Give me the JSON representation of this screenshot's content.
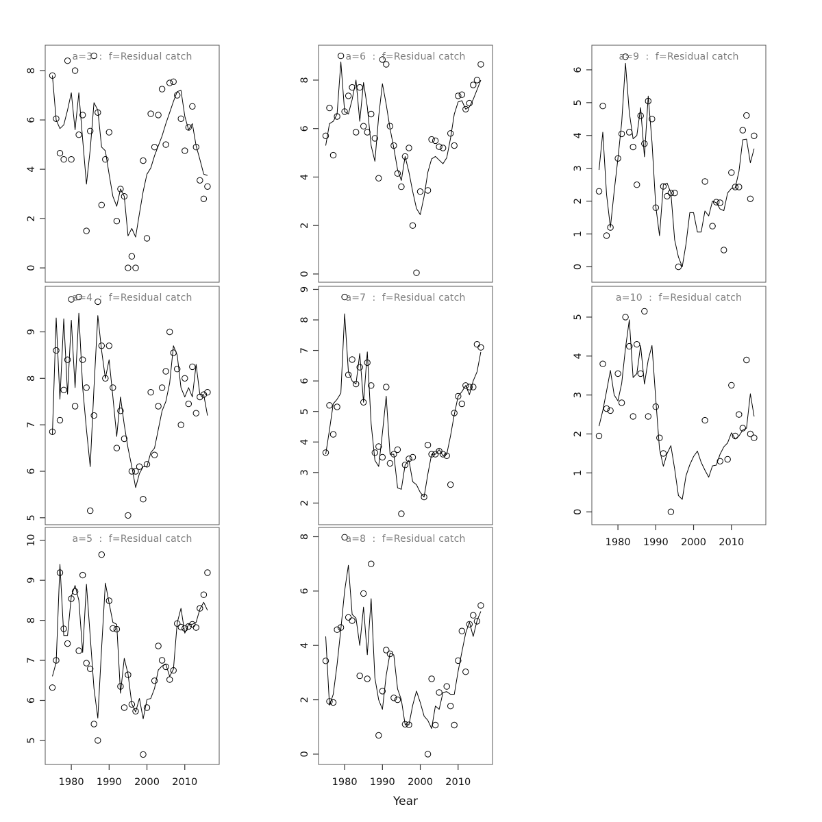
{
  "chart_data": {
    "type": "line",
    "title": "",
    "xlabel": "Year",
    "grid": "off",
    "layout": {
      "rows": 3,
      "cols": 3,
      "empty_cells": [
        "row3-col3"
      ]
    },
    "series_style": {
      "obs": "open black circles",
      "fit": "thin solid black line"
    },
    "x_ticks": [
      1980,
      1990,
      2000,
      2010
    ],
    "xlim": [
      1973.1,
      2019.1
    ],
    "years": [
      1975,
      1976,
      1977,
      1978,
      1979,
      1980,
      1981,
      1982,
      1983,
      1984,
      1985,
      1986,
      1987,
      1988,
      1989,
      1990,
      1991,
      1992,
      1993,
      1994,
      1995,
      1996,
      1997,
      1998,
      1999,
      2000,
      2001,
      2002,
      2003,
      2004,
      2005,
      2006,
      2007,
      2008,
      2009,
      2010,
      2011,
      2012,
      2013,
      2014,
      2015,
      2016
    ],
    "colors": {
      "title": "#7d7d7d",
      "line": "#000000",
      "point": "#000000",
      "box": "#555555",
      "tick": "#333333",
      "tick_label": "#111111"
    },
    "panels": [
      {
        "id": "a3",
        "title": "a=3  :  f=Residual catch",
        "row": 1,
        "col": 1,
        "ylim": [
          -0.58,
          9.03
        ],
        "y_ticks": [
          0,
          2,
          4,
          6,
          8
        ],
        "x_axis": false,
        "fit": [
          7.8,
          6.0,
          5.65,
          5.8,
          6.4,
          7.1,
          5.6,
          7.1,
          5.2,
          3.4,
          4.8,
          6.7,
          6.4,
          4.9,
          4.75,
          3.8,
          2.9,
          2.5,
          3.2,
          2.9,
          1.3,
          1.6,
          1.25,
          2.2,
          3.1,
          3.8,
          4.05,
          4.55,
          4.95,
          5.35,
          5.85,
          6.3,
          6.75,
          7.15,
          7.2,
          6.15,
          5.6,
          5.85,
          4.95,
          4.4,
          3.8,
          3.75
        ],
        "obs": [
          7.8,
          6.05,
          4.65,
          4.4,
          8.4,
          4.4,
          8.0,
          5.4,
          6.2,
          1.5,
          5.55,
          8.6,
          6.3,
          2.55,
          4.4,
          5.5,
          null,
          1.9,
          3.2,
          2.9,
          0.0,
          0.47,
          0.0,
          null,
          4.35,
          1.2,
          6.25,
          4.9,
          6.2,
          7.25,
          5.0,
          7.5,
          7.55,
          7.0,
          6.05,
          4.75,
          5.7,
          6.55,
          4.9,
          3.55,
          2.8,
          3.3
        ]
      },
      {
        "id": "a6",
        "title": "a=6  :  f=Residual catch",
        "row": 1,
        "col": 2,
        "ylim": [
          -0.34,
          9.44
        ],
        "y_ticks": [
          0,
          2,
          4,
          6,
          8
        ],
        "x_axis": false,
        "fit": [
          5.3,
          6.2,
          6.3,
          6.6,
          8.75,
          6.7,
          6.6,
          7.2,
          8.0,
          6.3,
          7.9,
          6.9,
          5.3,
          4.65,
          6.5,
          7.85,
          7.0,
          6.0,
          5.2,
          4.3,
          3.86,
          4.85,
          4.2,
          3.4,
          2.7,
          2.45,
          3.2,
          4.2,
          4.75,
          4.85,
          4.7,
          4.55,
          4.8,
          5.6,
          6.6,
          7.1,
          7.15,
          6.8,
          6.9,
          7.2,
          7.6,
          8.0
        ],
        "obs": [
          5.7,
          6.85,
          4.9,
          6.5,
          9.0,
          6.7,
          7.35,
          7.7,
          5.85,
          7.7,
          6.1,
          5.85,
          6.6,
          5.6,
          3.95,
          8.85,
          8.65,
          6.1,
          5.3,
          4.15,
          3.6,
          4.85,
          5.2,
          2.0,
          0.05,
          3.4,
          null,
          3.45,
          5.55,
          5.5,
          5.25,
          5.2,
          null,
          5.8,
          5.3,
          7.35,
          7.4,
          6.8,
          7.05,
          7.8,
          8.0,
          8.65
        ]
      },
      {
        "id": "a9",
        "title": "a=9  :  f=Residual catch",
        "row": 1,
        "col": 3,
        "ylim": [
          -0.47,
          6.75
        ],
        "y_ticks": [
          0,
          1,
          2,
          3,
          4,
          5,
          6
        ],
        "x_axis": false,
        "fit": [
          2.95,
          4.1,
          2.2,
          1.2,
          2.3,
          3.3,
          4.4,
          6.2,
          4.7,
          3.9,
          4.0,
          4.85,
          3.35,
          5.2,
          3.8,
          1.85,
          0.95,
          2.5,
          2.55,
          2.25,
          0.82,
          0.3,
          0.0,
          0.7,
          1.65,
          1.65,
          1.06,
          1.06,
          1.7,
          1.55,
          2.0,
          1.95,
          1.76,
          1.71,
          2.25,
          2.39,
          2.4,
          2.91,
          3.87,
          3.89,
          3.17,
          3.6
        ],
        "obs": [
          2.3,
          4.9,
          0.95,
          1.2,
          null,
          3.3,
          4.05,
          6.4,
          4.1,
          3.65,
          2.5,
          4.6,
          3.75,
          5.05,
          4.5,
          1.8,
          null,
          2.45,
          2.15,
          2.25,
          2.25,
          0.0,
          null,
          null,
          null,
          null,
          null,
          null,
          2.6,
          null,
          1.24,
          1.97,
          1.95,
          0.51,
          null,
          2.87,
          2.43,
          2.43,
          4.16,
          4.61,
          2.07,
          3.99
        ]
      },
      {
        "id": "a4",
        "title": "a=4  :  f=Residual catch",
        "row": 2,
        "col": 1,
        "ylim": [
          4.85,
          9.98
        ],
        "y_ticks": [
          5,
          6,
          7,
          8,
          9
        ],
        "x_axis": false,
        "fit": [
          6.8,
          9.3,
          7.55,
          9.28,
          7.66,
          9.25,
          7.8,
          9.4,
          7.8,
          6.9,
          6.1,
          7.8,
          9.35,
          8.6,
          8.0,
          8.4,
          7.6,
          6.75,
          7.6,
          7.0,
          6.5,
          6.1,
          5.65,
          5.95,
          6.1,
          6.1,
          6.4,
          6.5,
          6.9,
          7.3,
          7.5,
          7.9,
          8.7,
          8.5,
          7.8,
          7.6,
          7.8,
          7.6,
          8.3,
          7.65,
          7.65,
          7.2
        ],
        "obs": [
          6.85,
          8.6,
          7.1,
          7.75,
          8.4,
          9.7,
          7.4,
          9.75,
          8.4,
          7.8,
          5.15,
          7.2,
          9.65,
          8.7,
          8.0,
          8.7,
          7.8,
          6.5,
          7.3,
          6.7,
          5.05,
          6.0,
          6.0,
          6.1,
          5.4,
          6.15,
          7.7,
          6.35,
          7.4,
          7.8,
          8.15,
          9.0,
          8.55,
          8.2,
          7.0,
          8.0,
          7.45,
          8.25,
          7.25,
          7.6,
          7.65,
          7.7
        ]
      },
      {
        "id": "a7",
        "title": "a=7  :  f=Residual catch",
        "row": 2,
        "col": 2,
        "ylim": [
          1.29,
          9.1
        ],
        "y_ticks": [
          2,
          3,
          4,
          5,
          6,
          7,
          8,
          9
        ],
        "x_axis": false,
        "fit": [
          3.6,
          4.4,
          5.25,
          5.4,
          5.6,
          8.2,
          6.3,
          6.0,
          5.9,
          6.9,
          5.3,
          6.95,
          4.6,
          3.4,
          3.2,
          4.3,
          5.5,
          3.6,
          3.6,
          2.5,
          2.45,
          3.25,
          3.4,
          2.7,
          2.6,
          2.35,
          2.2,
          2.95,
          3.6,
          3.6,
          3.75,
          3.55,
          3.6,
          4.2,
          4.9,
          5.5,
          5.65,
          5.85,
          5.55,
          6.0,
          6.3,
          6.95
        ],
        "obs": [
          3.65,
          5.2,
          4.25,
          5.15,
          null,
          8.75,
          6.2,
          6.7,
          5.9,
          6.45,
          5.3,
          6.6,
          5.85,
          3.65,
          3.85,
          3.5,
          5.8,
          3.3,
          3.6,
          3.75,
          1.65,
          3.25,
          3.45,
          3.5,
          null,
          null,
          2.2,
          3.9,
          3.6,
          3.6,
          3.7,
          3.6,
          3.55,
          2.6,
          4.95,
          5.5,
          5.25,
          5.85,
          5.8,
          5.8,
          7.2,
          7.1
        ]
      },
      {
        "id": "a10",
        "title": "a=10  :  f=Residual catch",
        "row": 2,
        "col": 3,
        "ylim": [
          -0.33,
          5.79
        ],
        "y_ticks": [
          0,
          1,
          2,
          3,
          4,
          5
        ],
        "x_axis": true,
        "fit": [
          2.2,
          2.6,
          3.1,
          3.63,
          3.0,
          2.85,
          3.3,
          4.2,
          4.93,
          3.45,
          3.55,
          4.27,
          3.28,
          3.9,
          4.27,
          2.9,
          1.61,
          1.17,
          1.5,
          1.7,
          1.1,
          0.42,
          0.32,
          0.93,
          1.21,
          1.42,
          1.56,
          1.27,
          1.07,
          0.89,
          1.18,
          1.2,
          1.48,
          1.67,
          1.77,
          2.03,
          1.87,
          1.95,
          2.1,
          2.15,
          3.03,
          2.45
        ],
        "obs": [
          1.95,
          3.8,
          2.65,
          2.6,
          null,
          3.55,
          2.8,
          5.0,
          4.25,
          2.45,
          4.3,
          3.55,
          5.15,
          2.45,
          null,
          2.7,
          1.9,
          1.5,
          null,
          0.0,
          null,
          null,
          null,
          null,
          null,
          null,
          null,
          null,
          2.35,
          null,
          null,
          null,
          1.3,
          null,
          1.35,
          3.25,
          1.95,
          2.5,
          2.15,
          3.9,
          2.0,
          1.9
        ]
      },
      {
        "id": "a5",
        "title": "a=5  :  f=Residual catch",
        "row": 3,
        "col": 1,
        "ylim": [
          4.4,
          10.32
        ],
        "y_ticks": [
          5,
          6,
          7,
          8,
          9,
          10
        ],
        "x_axis": true,
        "fit": [
          6.6,
          6.95,
          9.4,
          7.62,
          7.62,
          8.6,
          8.87,
          8.5,
          7.2,
          8.9,
          7.6,
          6.3,
          5.56,
          7.3,
          8.93,
          8.43,
          7.95,
          7.9,
          6.18,
          7.05,
          6.66,
          5.91,
          5.71,
          6.05,
          5.54,
          6.02,
          6.05,
          6.3,
          6.76,
          6.86,
          6.9,
          6.6,
          6.78,
          7.94,
          8.3,
          7.68,
          7.9,
          7.9,
          7.95,
          8.28,
          8.45,
          8.25
        ],
        "obs": [
          6.32,
          7.0,
          9.19,
          7.79,
          7.42,
          8.54,
          8.72,
          7.24,
          9.13,
          6.93,
          6.79,
          5.41,
          5.0,
          9.64,
          null,
          8.49,
          7.8,
          7.78,
          6.35,
          5.82,
          6.64,
          5.9,
          5.73,
          null,
          4.65,
          5.82,
          null,
          6.49,
          7.36,
          7.0,
          6.84,
          6.52,
          6.75,
          7.92,
          7.83,
          7.8,
          7.85,
          7.9,
          7.82,
          8.3,
          8.64,
          9.19
        ]
      },
      {
        "id": "a8",
        "title": "a=8  :  f=Residual catch",
        "row": 3,
        "col": 2,
        "ylim": [
          -0.38,
          8.34
        ],
        "y_ticks": [
          0,
          2,
          4,
          6,
          8
        ],
        "x_axis": true,
        "fit": [
          4.33,
          1.8,
          2.2,
          3.3,
          4.6,
          6.0,
          6.95,
          5.14,
          5.0,
          4.0,
          5.41,
          3.66,
          5.72,
          2.8,
          2.0,
          1.65,
          2.9,
          3.72,
          3.65,
          2.4,
          2.0,
          1.09,
          1.08,
          1.8,
          2.32,
          1.9,
          1.4,
          1.24,
          0.94,
          1.77,
          1.65,
          2.27,
          2.3,
          2.2,
          2.2,
          3.05,
          3.76,
          4.45,
          4.86,
          4.33,
          4.91,
          5.25
        ],
        "obs": [
          3.43,
          1.94,
          1.9,
          4.58,
          4.66,
          7.98,
          5.03,
          4.91,
          null,
          2.88,
          5.91,
          2.77,
          7.0,
          null,
          0.69,
          2.32,
          3.83,
          3.69,
          2.07,
          2.0,
          null,
          1.1,
          1.08,
          null,
          null,
          null,
          null,
          0.0,
          2.77,
          1.07,
          2.27,
          null,
          2.49,
          1.77,
          1.07,
          3.44,
          4.53,
          3.03,
          4.78,
          5.11,
          4.89,
          5.47
        ]
      }
    ]
  }
}
